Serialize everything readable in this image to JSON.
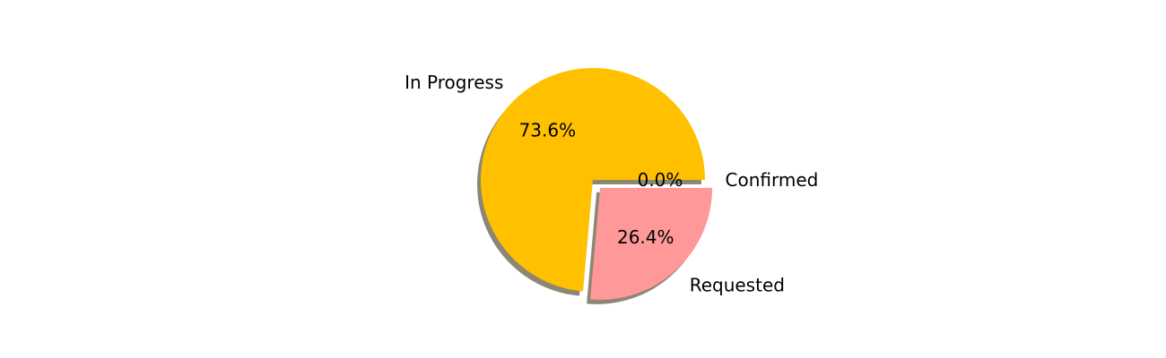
{
  "chart_data": {
    "type": "pie",
    "categories": [
      "Confirmed",
      "Requested",
      "In Progress"
    ],
    "values": [
      0.0,
      26.4,
      73.6
    ],
    "percent_labels": [
      "0.0%",
      "26.4%",
      "73.6%"
    ],
    "exploded": [
      false,
      true,
      false
    ],
    "shadow": true,
    "start_angle_deg": 0,
    "direction": "clockwise",
    "colors": [
      "#00ff40",
      "#ff9999",
      "#ffc000"
    ],
    "shadow_color": "#8c8675"
  }
}
